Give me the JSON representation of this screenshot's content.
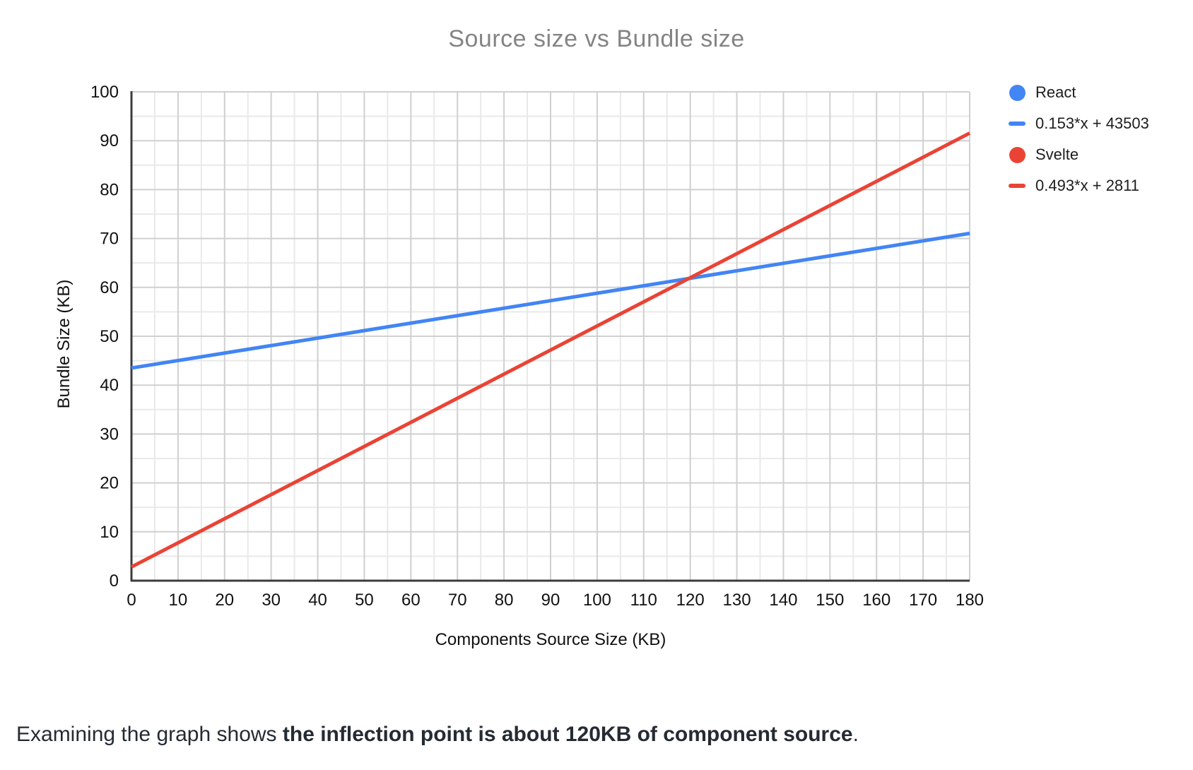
{
  "chart_data": {
    "type": "line",
    "title": "Source size vs Bundle size",
    "xlabel": "Components Source Size (KB)",
    "ylabel": "Bundle Size (KB)",
    "xlim": [
      0,
      180
    ],
    "ylim": [
      0,
      100
    ],
    "x_tick_step": 10,
    "y_tick_step": 10,
    "minor_grid_step": 5,
    "grid": true,
    "legend_position": "right",
    "series": [
      {
        "name": "React",
        "color": "#4285F4",
        "trendline_label": "0.153*x + 43503",
        "slope_kb_per_kb": 0.153,
        "intercept_kb": 43.503,
        "endpoints_kb": {
          "x": [
            0,
            180
          ],
          "y": [
            43.5,
            71.0
          ]
        }
      },
      {
        "name": "Svelte",
        "color": "#EA4335",
        "trendline_label": "0.493*x + 2811",
        "slope_kb_per_kb": 0.493,
        "intercept_kb": 2.811,
        "endpoints_kb": {
          "x": [
            0,
            180
          ],
          "y": [
            2.8,
            91.6
          ]
        }
      }
    ],
    "intersection": {
      "x_kb": 120,
      "y_kb": 62
    }
  },
  "legend": {
    "items": [
      {
        "label": "React",
        "marker": "circle",
        "color": "#4285F4"
      },
      {
        "label": "0.153*x + 43503",
        "marker": "dash",
        "color": "#4285F4"
      },
      {
        "label": "Svelte",
        "marker": "circle",
        "color": "#EA4335"
      },
      {
        "label": "0.493*x + 2811",
        "marker": "dash",
        "color": "#EA4335"
      }
    ]
  },
  "caption": {
    "prefix": "Examining the graph shows ",
    "bold": "the inflection point is about 120KB of component source",
    "suffix": "."
  },
  "colors": {
    "series_blue": "#4285F4",
    "series_red": "#EA4335",
    "title_gray": "#848484",
    "axis_text": "#111111",
    "grid_major": "#d0d0d0",
    "grid_minor": "#e9e9e9",
    "axis_line": "#3c3c3c",
    "caption_text": "#252b33"
  }
}
